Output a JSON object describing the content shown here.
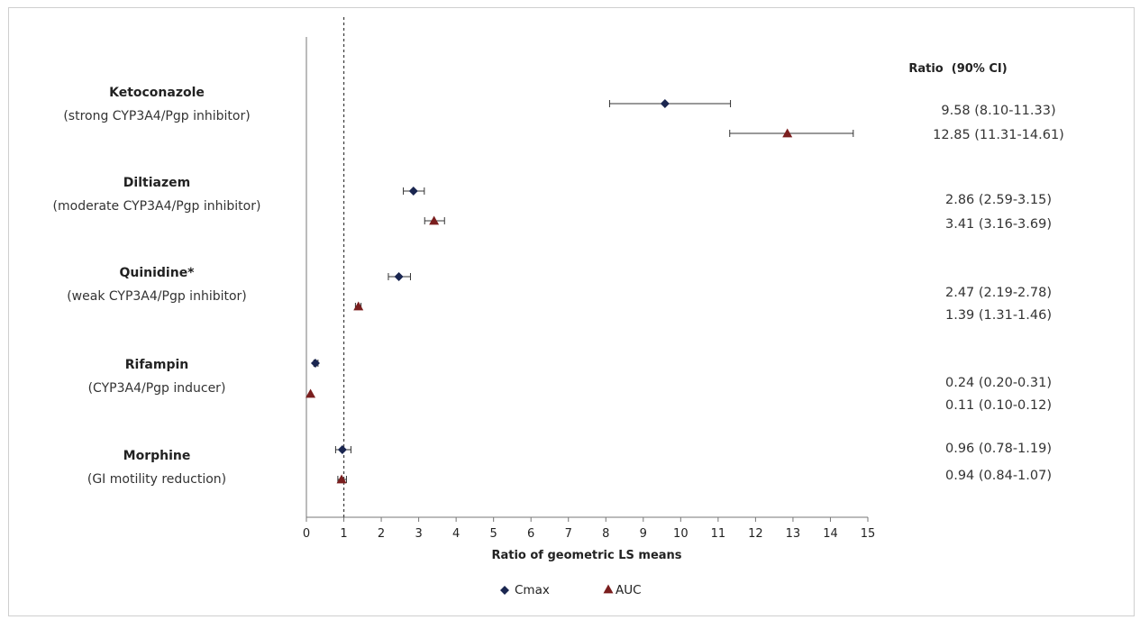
{
  "chart_data": {
    "type": "scatter",
    "subtype": "forest-plot",
    "xlabel": "Ratio of geometric LS means",
    "xlim": [
      0,
      15
    ],
    "xticks": [
      0,
      1,
      2,
      3,
      4,
      5,
      6,
      7,
      8,
      9,
      10,
      11,
      12,
      13,
      14,
      15
    ],
    "reference_line_x": 1,
    "reference_line_style": "dotted",
    "ratio_column_header": "Ratio  (90% CI)",
    "legend": {
      "placement": "bottom-center",
      "items": [
        {
          "name": "Cmax",
          "marker": "diamond",
          "color": "#1a2650"
        },
        {
          "name": "AUC",
          "marker": "triangle",
          "color": "#7a1e1e"
        }
      ]
    },
    "groups": [
      {
        "name": "Ketoconazole",
        "description": "(strong CYP3A4/Pgp inhibitor)",
        "cmax": {
          "value": 9.58,
          "low": 8.1,
          "high": 11.33,
          "label": "9.58 (8.10-11.33)"
        },
        "auc": {
          "value": 12.85,
          "low": 11.31,
          "high": 14.61,
          "label": "12.85 (11.31-14.61)"
        }
      },
      {
        "name": "Diltiazem",
        "description": "(moderate CYP3A4/Pgp inhibitor)",
        "cmax": {
          "value": 2.86,
          "low": 2.59,
          "high": 3.15,
          "label": "2.86 (2.59-3.15)"
        },
        "auc": {
          "value": 3.41,
          "low": 3.16,
          "high": 3.69,
          "label": "3.41 (3.16-3.69)"
        }
      },
      {
        "name": "Quinidine*",
        "description": "(weak CYP3A4/Pgp inhibitor)",
        "cmax": {
          "value": 2.47,
          "low": 2.19,
          "high": 2.78,
          "label": "2.47 (2.19-2.78)"
        },
        "auc": {
          "value": 1.39,
          "low": 1.31,
          "high": 1.46,
          "label": "1.39 (1.31-1.46)"
        }
      },
      {
        "name": "Rifampin",
        "description": "(CYP3A4/Pgp inducer)",
        "cmax": {
          "value": 0.24,
          "low": 0.2,
          "high": 0.31,
          "label": "0.24 (0.20-0.31)"
        },
        "auc": {
          "value": 0.11,
          "low": 0.1,
          "high": 0.12,
          "label": "0.11 (0.10-0.12)"
        }
      },
      {
        "name": "Morphine",
        "description": "(GI motility reduction)",
        "cmax": {
          "value": 0.96,
          "low": 0.78,
          "high": 1.19,
          "label": "0.96 (0.78-1.19)"
        },
        "auc": {
          "value": 0.94,
          "low": 0.84,
          "high": 1.07,
          "label": "0.94 (0.84-1.07)"
        }
      }
    ]
  }
}
